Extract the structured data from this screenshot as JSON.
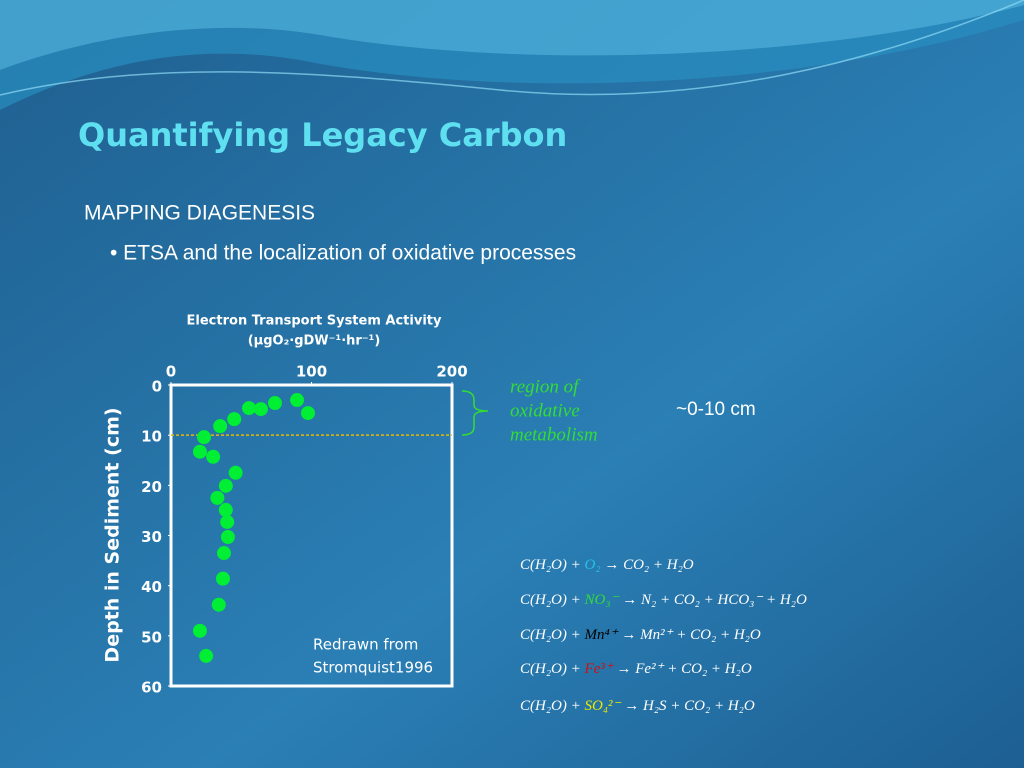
{
  "slide": {
    "title": "Quantifying Legacy Carbon",
    "heading": "MAPPING DIAGENESIS",
    "bullet": "• ETSA and the localization of oxidative processes",
    "region_label": [
      "region of",
      "oxidative",
      "metabolism"
    ],
    "range_label": "~0-10 cm",
    "equations": [
      {
        "left": "C(H₂O) + ",
        "species": "O₂",
        "right": " → CO₂ + H₂O",
        "color": "#22c4e6"
      },
      {
        "left": "C(H₂O) + ",
        "species": "NO₃⁻",
        "right": " → N₂ + CO₂ + HCO₃⁻ + H₂O",
        "color": "#33dd33"
      },
      {
        "left": "C(H₂O) + ",
        "species": "Mn⁴⁺",
        "right": " → Mn²⁺ + CO₂ + H₂O",
        "color": "#000000"
      },
      {
        "left": "C(H₂O) + ",
        "species": "Fe³⁺",
        "right": " → Fe²⁺ + CO₂ + H₂O",
        "color": "#cc1111"
      },
      {
        "left": "C(H₂O) + ",
        "species": "SO₄²⁻",
        "right": " → H₂S + CO₂ + H₂O",
        "color": "#e8e800"
      }
    ]
  },
  "chart_data": {
    "type": "scatter",
    "title": [
      "Electron Transport System Activity",
      "(μgO₂·gDW⁻¹·hr⁻¹)"
    ],
    "y_label": "Depth in Sediment (cm)",
    "annotations": [
      "Redrawn from",
      "Stromquist1996"
    ],
    "x": [
      89.7,
      97.5,
      74,
      64,
      55.5,
      45,
      35,
      23.5,
      20.6,
      30,
      46,
      39,
      33,
      39,
      40,
      40.5,
      37.7,
      37,
      34,
      20.6,
      25
    ],
    "values": [
      3.0,
      5.6,
      3.6,
      4.8,
      4.6,
      6.8,
      8.2,
      10.4,
      13.3,
      14.3,
      17.5,
      20.1,
      22.5,
      24.9,
      27.3,
      30.3,
      33.5,
      38.6,
      43.8,
      49,
      54
    ],
    "color": "#00ee33",
    "xlim": [
      0,
      200
    ],
    "xticks": [
      0,
      100,
      200
    ],
    "ylim": [
      0,
      60
    ],
    "yticks": [
      0,
      10,
      20,
      30,
      40,
      50,
      60
    ],
    "y_inverted": true,
    "reference_y": 10,
    "reference_color": "#e8b800"
  }
}
